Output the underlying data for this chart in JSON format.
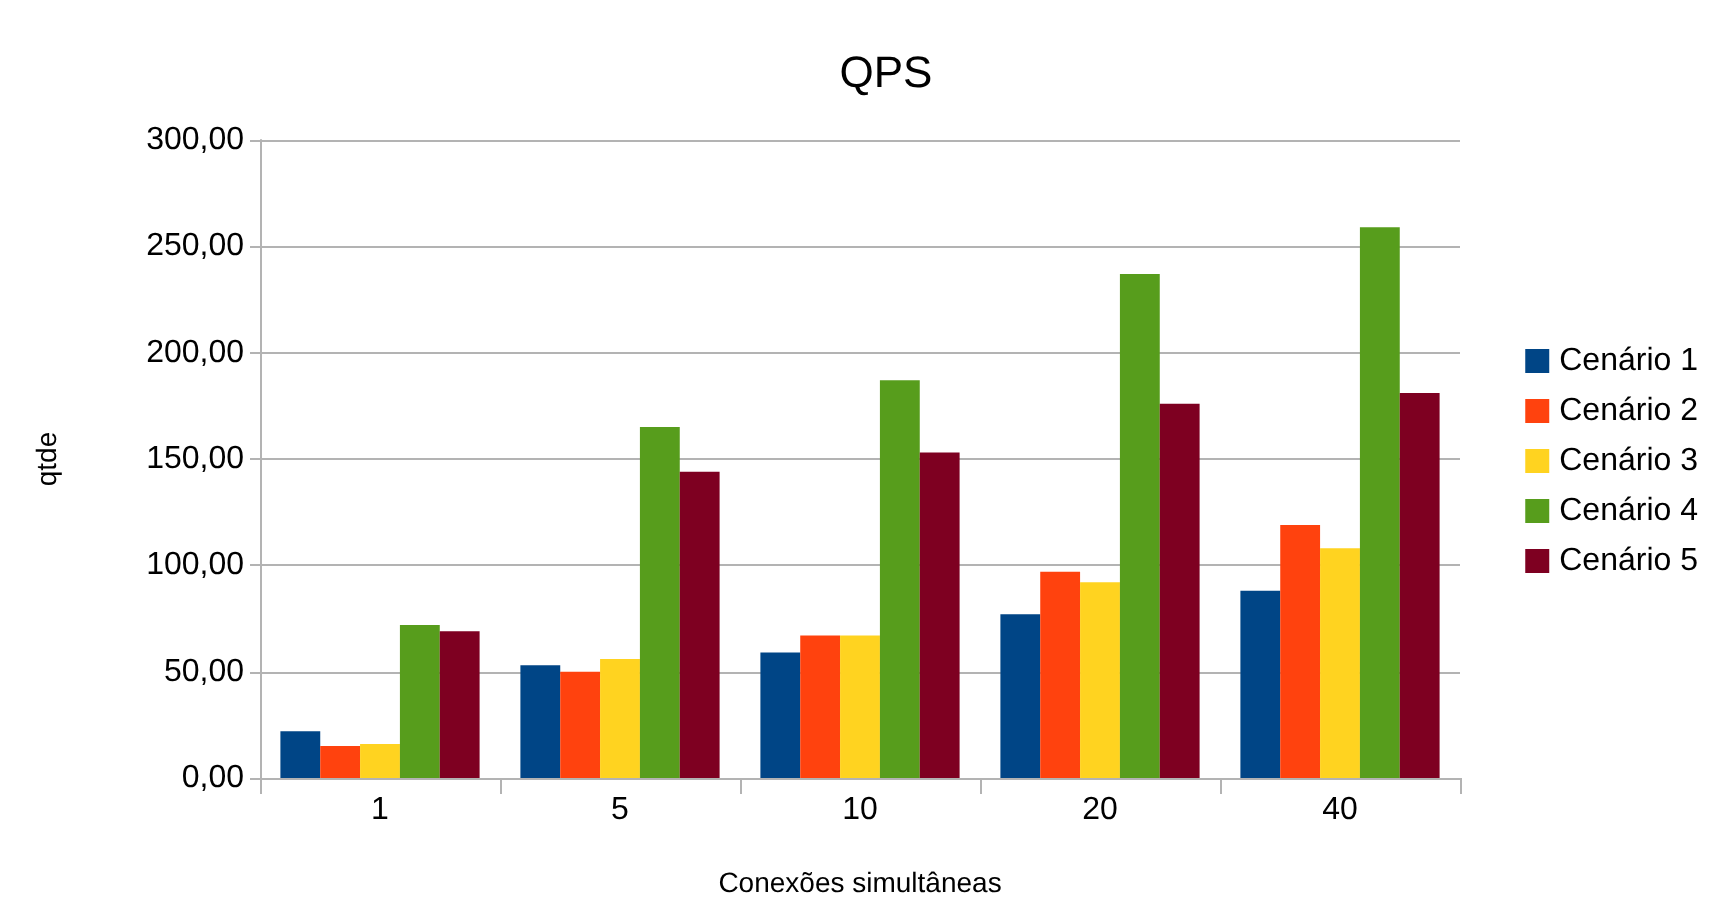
{
  "chart_data": {
    "type": "bar",
    "title": "QPS",
    "xlabel": "Conexões simultâneas",
    "ylabel": "qtde",
    "categories": [
      "1",
      "5",
      "10",
      "20",
      "40"
    ],
    "series": [
      {
        "name": "Cenário 1",
        "color": "#004586",
        "values": [
          22,
          53,
          59,
          77,
          88
        ]
      },
      {
        "name": "Cenário 2",
        "color": "#ff420e",
        "values": [
          15,
          50,
          67,
          97,
          119
        ]
      },
      {
        "name": "Cenário 3",
        "color": "#ffd320",
        "values": [
          16,
          56,
          67,
          92,
          108
        ]
      },
      {
        "name": "Cenário 4",
        "color": "#579d1c",
        "values": [
          72,
          165,
          187,
          237,
          259
        ]
      },
      {
        "name": "Cenário 5",
        "color": "#7e0021",
        "values": [
          69,
          144,
          153,
          176,
          181
        ]
      }
    ],
    "ylim": [
      0,
      300
    ],
    "yticks": [
      {
        "value": 0,
        "label": "0,00"
      },
      {
        "value": 50,
        "label": "50,00"
      },
      {
        "value": 100,
        "label": "100,00"
      },
      {
        "value": 150,
        "label": "150,00"
      },
      {
        "value": 200,
        "label": "200,00"
      },
      {
        "value": 250,
        "label": "250,00"
      },
      {
        "value": 300,
        "label": "300,00"
      }
    ],
    "grid": "y",
    "legend": "right"
  }
}
